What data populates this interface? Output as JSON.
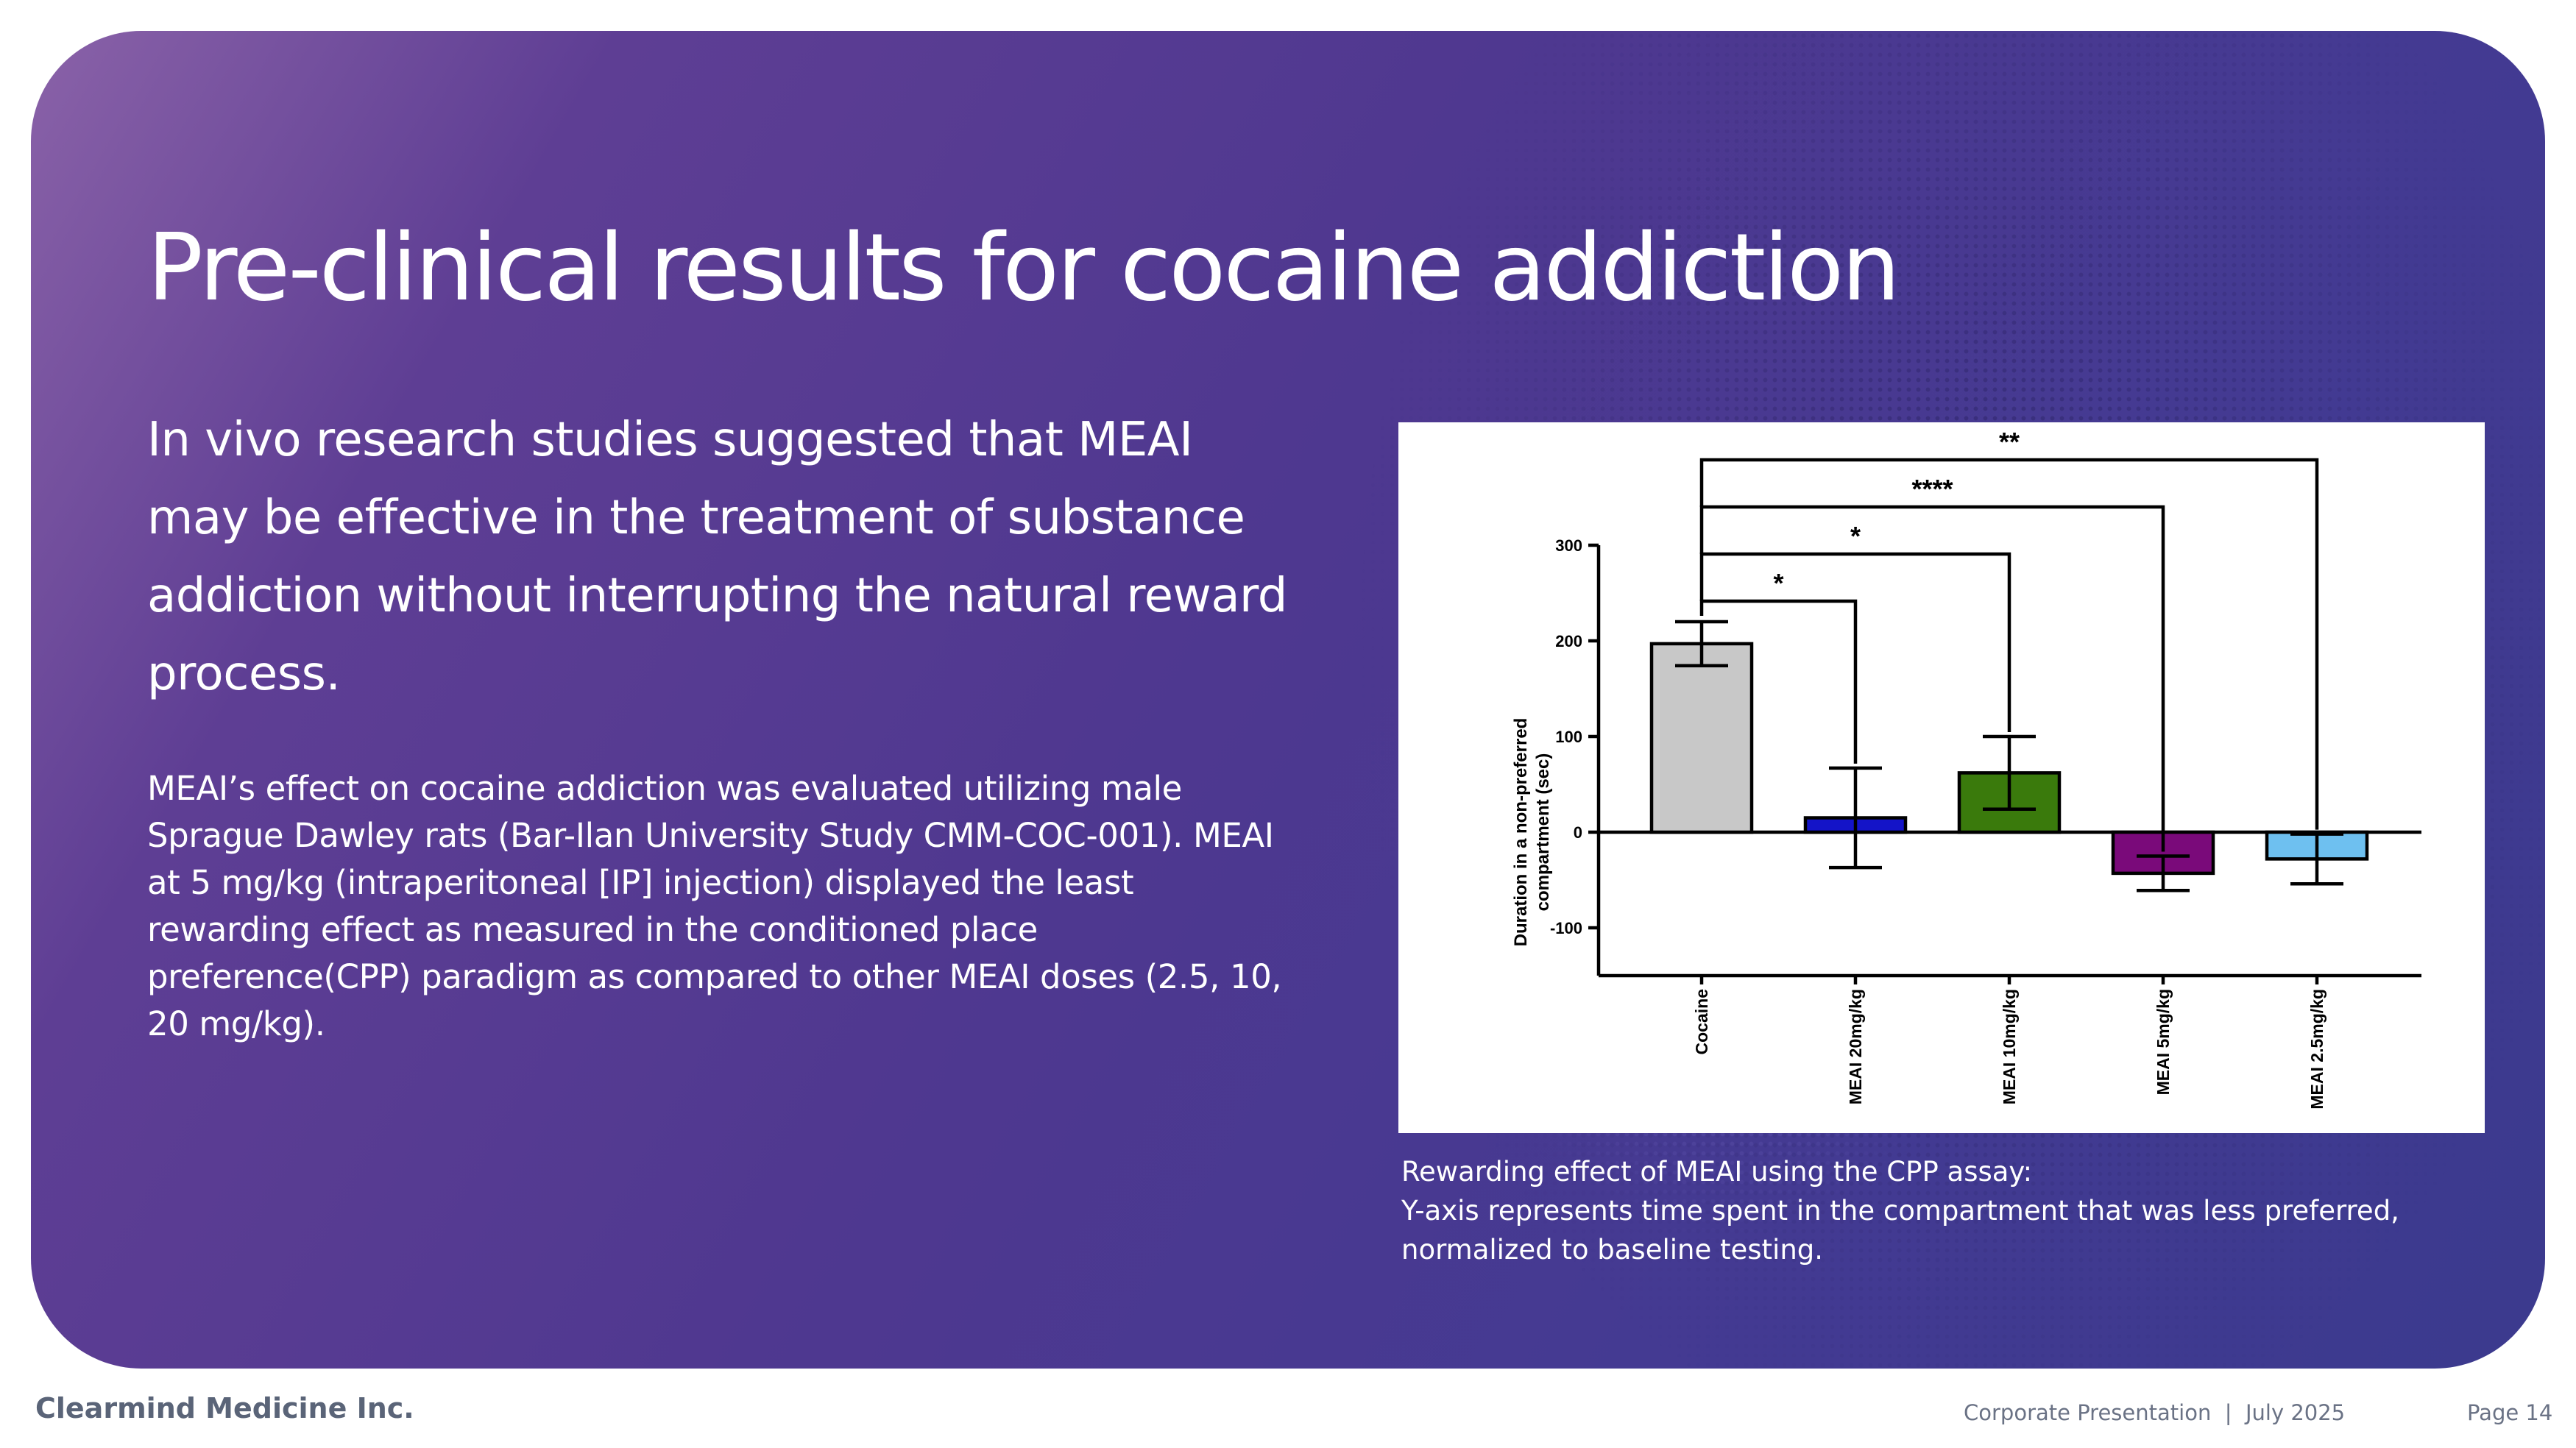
{
  "slide": {
    "title": "Pre-clinical results for cocaine addiction",
    "lead": "In vivo research studies suggested that MEAI may be effective in the treatment of substance addiction without interrupting the natural reward process.",
    "body": "MEAI’s effect on cocaine addiction was evaluated utilizing male Sprague Dawley rats (Bar-Ilan University Study CMM-COC-001). MEAI at 5 mg/kg (intraperitoneal [IP] injection) displayed the least rewarding effect as measured in the conditioned place preference(CPP) paradigm as compared to other MEAI doses (2.5, 10, 20 mg/kg).",
    "caption_line1": "Rewarding effect of MEAI using the CPP assay:",
    "caption_line2": "Y-axis represents time spent in the compartment that was less preferred,",
    "caption_line3": "normalized to baseline testing."
  },
  "footer": {
    "company": "Clearmind Medicine Inc.",
    "document": "Corporate Presentation  |  July 2025",
    "page": "Page 14"
  },
  "colors": {
    "panel_gradient_start": "#8a62a8",
    "panel_gradient_end": "#3b3a8e",
    "text": "#ffffff",
    "footer_text": "#5a6478"
  },
  "chart_data": {
    "type": "bar",
    "ylabel": "Duration in a non-preferred compartment (sec)",
    "ylim": [
      -150,
      300
    ],
    "yticks": [
      -100,
      0,
      100,
      200,
      300
    ],
    "ytick_labels": [
      "-100",
      "0",
      "100",
      "200",
      "300"
    ],
    "grid": false,
    "legend": "none",
    "categories": [
      "Cocaine",
      "MEAI 20mg/kg",
      "MEAI 10mg/kg",
      "MEAI 5mg/kg",
      "MEAI 2.5mg/kg"
    ],
    "values": [
      197,
      15,
      62,
      -43,
      -28
    ],
    "errors": [
      23,
      52,
      38,
      18,
      26
    ],
    "colors": [
      "#c8c8c8",
      "#1414c8",
      "#3a7a0c",
      "#7a0a7a",
      "#6ec0f0"
    ],
    "significance": [
      {
        "from": "Cocaine",
        "to": "MEAI 20mg/kg",
        "label": "*"
      },
      {
        "from": "Cocaine",
        "to": "MEAI 10mg/kg",
        "label": "*"
      },
      {
        "from": "Cocaine",
        "to": "MEAI 5mg/kg",
        "label": "****"
      },
      {
        "from": "Cocaine",
        "to": "MEAI 2.5mg/kg",
        "label": "**"
      }
    ]
  }
}
